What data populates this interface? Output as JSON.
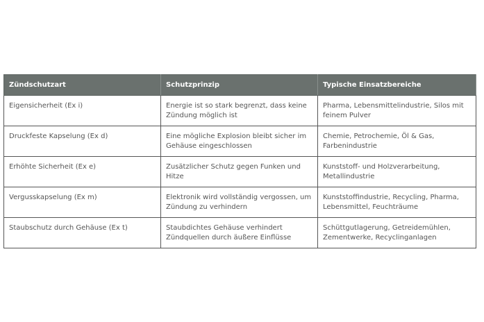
{
  "table": {
    "headers": [
      "Zündschutzart",
      "Schutzprinzip",
      "Typische Einsatzbereiche"
    ],
    "rows": [
      [
        "Eigensicherheit (Ex i)",
        "Energie ist so stark begrenzt, dass keine Zündung möglich ist",
        "Pharma, Lebensmittelindustrie, Silos mit feinem Pulver"
      ],
      [
        "Druckfeste Kapselung (Ex d)",
        "Eine mögliche Explosion bleibt sicher im Gehäuse eingeschlossen",
        "Chemie, Petrochemie, Öl & Gas, Farbenindustrie"
      ],
      [
        "Erhöhte Sicherheit (Ex e)",
        "Zusätzlicher Schutz gegen Funken und Hitze",
        "Kunststoff- und Holzverarbeitung, Metallindustrie"
      ],
      [
        "Vergusskapselung (Ex m)",
        "Elektronik wird vollständig vergossen, um Zündung zu verhindern",
        "Kunststoffindustrie, Recycling, Pharma, Lebensmittel, Feuchträume"
      ],
      [
        "Staubschutz durch Gehäuse (Ex t)",
        "Staubdichtes Gehäuse verhindert Zündquellen durch äußere Einflüsse",
        "Schüttgutlagerung, Getreidemühlen, Zementwerke, Recyclinganlagen"
      ]
    ]
  },
  "colors": {
    "header_bg": "#6a716e",
    "header_text": "#ffffff",
    "cell_text": "#555555"
  }
}
